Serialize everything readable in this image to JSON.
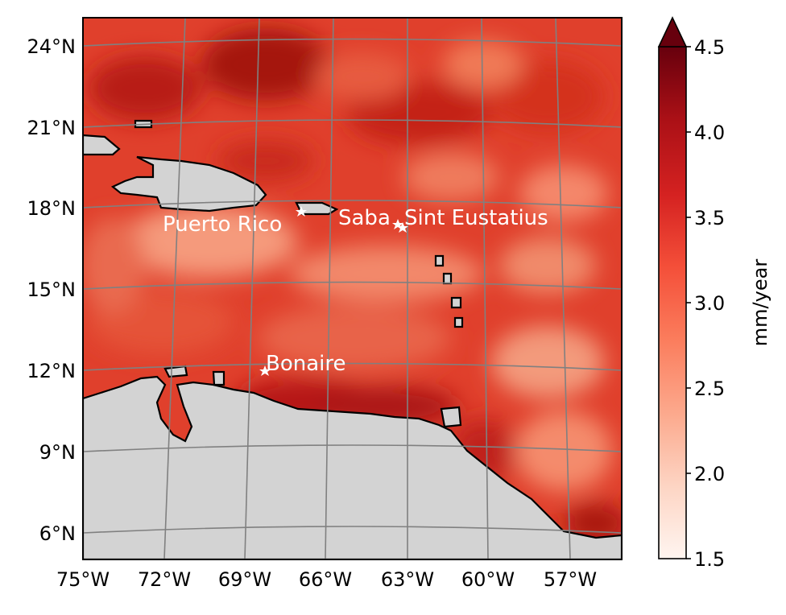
{
  "map": {
    "lat_ticks": [
      "24°N",
      "21°N",
      "18°N",
      "15°N",
      "12°N",
      "9°N",
      "6°N"
    ],
    "lon_ticks": [
      "75°W",
      "72°W",
      "69°W",
      "66°W",
      "63°W",
      "60°W",
      "57°W"
    ],
    "extent": {
      "lon_min": -75,
      "lon_max": -55,
      "lat_min": 5,
      "lat_max": 25
    },
    "places": [
      {
        "name": "Puerto Rico",
        "lon": -66.7,
        "lat": 17.9
      },
      {
        "name": "Saba",
        "lon": -63.2,
        "lat": 17.6
      },
      {
        "name": "Sint Eustatius",
        "lon": -63.0,
        "lat": 17.5
      },
      {
        "name": "Bonaire",
        "lon": -68.3,
        "lat": 12.1
      }
    ]
  },
  "colorbar": {
    "label": "mm/year",
    "ticks": [
      "1.5",
      "2.0",
      "2.5",
      "3.0",
      "3.5",
      "4.0",
      "4.5"
    ],
    "min": 1.5,
    "max": 4.5,
    "extend": "max",
    "colormap": "Reds",
    "colors": [
      "#fff5f0",
      "#fcbba1",
      "#fc9272",
      "#fb6a4a",
      "#ef3b2c",
      "#cb181d",
      "#a50f15",
      "#67000d"
    ]
  },
  "style": {
    "land_color": "#d3d3d3",
    "grid_color": "#808080",
    "marker_color": "#ffffff"
  }
}
